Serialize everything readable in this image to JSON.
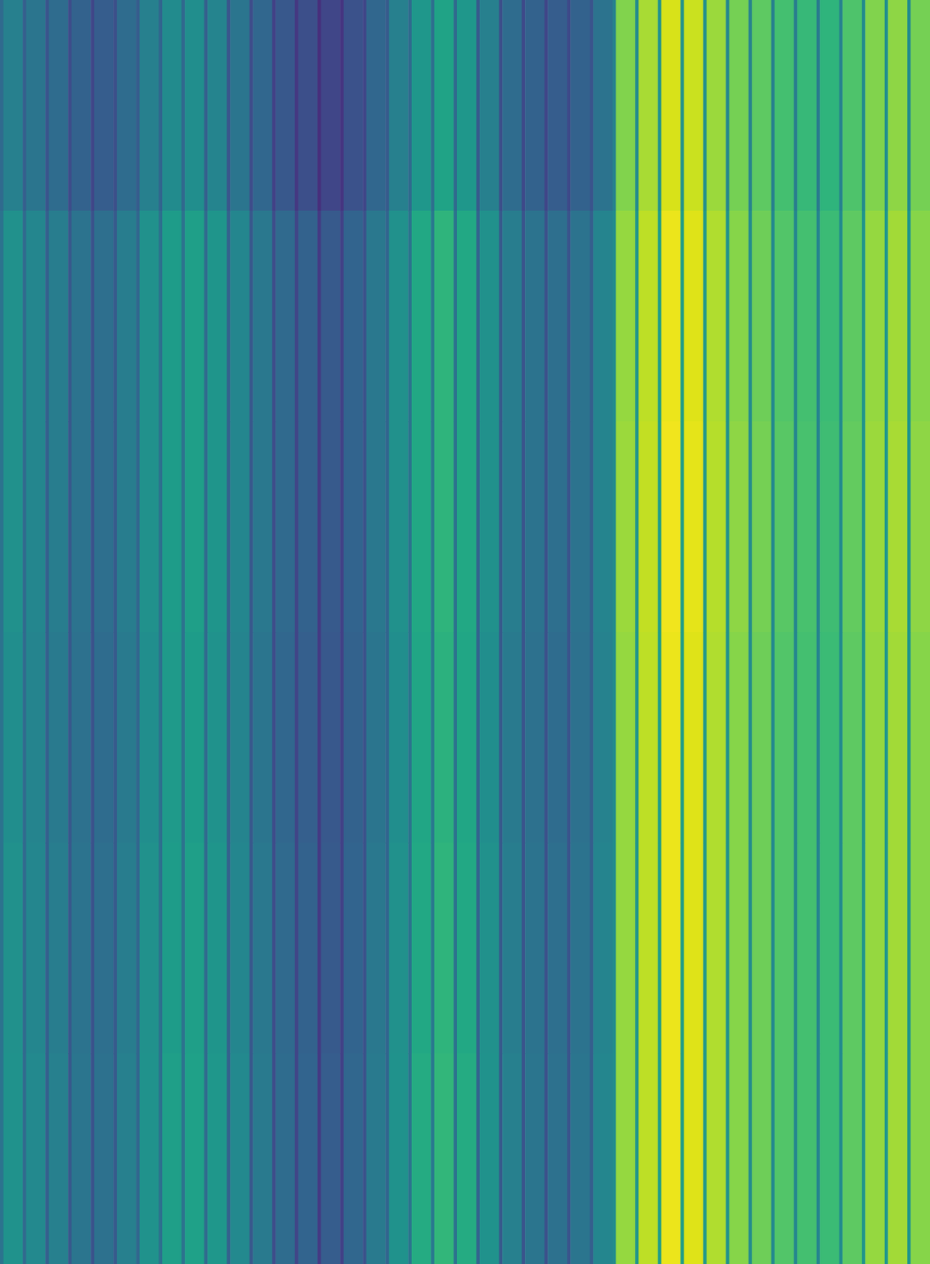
{
  "chart_data": {
    "type": "heatmap",
    "color": "viridis",
    "tick_labels": false,
    "xlim": [
      0,
      41
    ],
    "ylim": [
      0,
      6
    ],
    "zlim": [
      0,
      1
    ],
    "x": [
      0,
      0.15,
      1,
      1.15,
      2,
      2.15,
      3,
      3.15,
      4,
      4.15,
      5,
      5.15,
      6,
      6.15,
      7,
      7.15,
      8,
      8.15,
      9,
      9.15,
      10,
      10.15,
      11,
      11.15,
      12,
      12.15,
      13,
      13.15,
      14,
      14.15,
      15,
      15.15,
      16,
      16.15,
      17,
      17.15,
      18,
      18.15,
      19,
      19.15,
      20,
      20.15,
      21,
      21.15,
      22,
      22.15,
      23,
      23.15,
      24,
      24.15,
      25,
      25.15,
      26,
      26.15,
      27,
      27.15,
      28,
      28.15,
      29,
      29.15,
      30,
      30.15,
      31,
      31.15,
      32,
      32.15,
      33,
      33.15,
      34,
      34.15,
      35,
      35.15,
      36,
      36.15,
      37,
      37.15,
      38,
      38.15,
      39,
      39.15,
      40,
      40.15,
      41
    ],
    "y": [
      0,
      1,
      2,
      3,
      4,
      5,
      6
    ],
    "z": [
      [
        0.34,
        0.43,
        0.3,
        0.39,
        0.26,
        0.35,
        0.23,
        0.31,
        0.21,
        0.29,
        0.24,
        0.35,
        0.29,
        0.43,
        0.32,
        0.48,
        0.33,
        0.49,
        0.3,
        0.45,
        0.26,
        0.39,
        0.23,
        0.33,
        0.19,
        0.27,
        0.16,
        0.24,
        0.13,
        0.21,
        0.15,
        0.25,
        0.21,
        0.33,
        0.28,
        0.43,
        0.34,
        0.53,
        0.36,
        0.58,
        0.34,
        0.53,
        0.28,
        0.43,
        0.24,
        0.35,
        0.22,
        0.31,
        0.21,
        0.29,
        0.22,
        0.31,
        0.26,
        0.38,
        0.44,
        0.81,
        0.48,
        0.87,
        0.51,
        0.94,
        0.51,
        0.92,
        0.49,
        0.85,
        0.46,
        0.79,
        0.44,
        0.75,
        0.43,
        0.7,
        0.42,
        0.67,
        0.41,
        0.65,
        0.44,
        0.72,
        0.48,
        0.81,
        0.49,
        0.83,
        0.48,
        0.79
      ],
      [
        0.38,
        0.5,
        0.34,
        0.46,
        0.3,
        0.42,
        0.27,
        0.38,
        0.25,
        0.36,
        0.28,
        0.42,
        0.33,
        0.5,
        0.36,
        0.55,
        0.37,
        0.56,
        0.34,
        0.52,
        0.3,
        0.46,
        0.27,
        0.4,
        0.23,
        0.34,
        0.2,
        0.31,
        0.17,
        0.28,
        0.19,
        0.32,
        0.25,
        0.4,
        0.32,
        0.5,
        0.38,
        0.6,
        0.4,
        0.65,
        0.38,
        0.6,
        0.32,
        0.5,
        0.28,
        0.42,
        0.26,
        0.38,
        0.25,
        0.36,
        0.26,
        0.38,
        0.3,
        0.45,
        0.48,
        0.84,
        0.52,
        0.9,
        0.55,
        0.97,
        0.55,
        0.95,
        0.53,
        0.88,
        0.5,
        0.82,
        0.48,
        0.78,
        0.47,
        0.73,
        0.46,
        0.7,
        0.45,
        0.68,
        0.48,
        0.75,
        0.52,
        0.84,
        0.53,
        0.86,
        0.52,
        0.82
      ],
      [
        0.38,
        0.5,
        0.34,
        0.46,
        0.3,
        0.42,
        0.27,
        0.38,
        0.25,
        0.36,
        0.28,
        0.42,
        0.33,
        0.5,
        0.36,
        0.55,
        0.37,
        0.56,
        0.34,
        0.52,
        0.3,
        0.46,
        0.27,
        0.4,
        0.23,
        0.34,
        0.2,
        0.31,
        0.17,
        0.28,
        0.19,
        0.32,
        0.25,
        0.4,
        0.32,
        0.5,
        0.38,
        0.6,
        0.4,
        0.65,
        0.38,
        0.6,
        0.32,
        0.5,
        0.28,
        0.42,
        0.26,
        0.38,
        0.25,
        0.36,
        0.26,
        0.38,
        0.3,
        0.45,
        0.48,
        0.85,
        0.52,
        0.91,
        0.55,
        0.98,
        0.55,
        0.96,
        0.53,
        0.89,
        0.5,
        0.83,
        0.48,
        0.79,
        0.47,
        0.74,
        0.46,
        0.71,
        0.45,
        0.69,
        0.48,
        0.76,
        0.52,
        0.85,
        0.53,
        0.87,
        0.52,
        0.83
      ],
      [
        0.38,
        0.49,
        0.34,
        0.45,
        0.3,
        0.41,
        0.27,
        0.37,
        0.25,
        0.35,
        0.28,
        0.41,
        0.33,
        0.49,
        0.36,
        0.54,
        0.37,
        0.55,
        0.34,
        0.51,
        0.3,
        0.45,
        0.27,
        0.39,
        0.23,
        0.33,
        0.2,
        0.3,
        0.17,
        0.27,
        0.19,
        0.31,
        0.25,
        0.39,
        0.32,
        0.49,
        0.38,
        0.59,
        0.4,
        0.64,
        0.38,
        0.59,
        0.32,
        0.49,
        0.28,
        0.41,
        0.26,
        0.37,
        0.25,
        0.35,
        0.26,
        0.37,
        0.3,
        0.44,
        0.48,
        0.84,
        0.52,
        0.9,
        0.55,
        0.97,
        0.55,
        0.95,
        0.53,
        0.88,
        0.5,
        0.82,
        0.48,
        0.78,
        0.47,
        0.73,
        0.46,
        0.7,
        0.45,
        0.68,
        0.48,
        0.75,
        0.52,
        0.84,
        0.53,
        0.86,
        0.52,
        0.82
      ],
      [
        0.38,
        0.5,
        0.34,
        0.46,
        0.3,
        0.42,
        0.27,
        0.38,
        0.25,
        0.36,
        0.28,
        0.42,
        0.33,
        0.5,
        0.36,
        0.55,
        0.37,
        0.56,
        0.34,
        0.52,
        0.3,
        0.46,
        0.27,
        0.4,
        0.23,
        0.34,
        0.2,
        0.31,
        0.17,
        0.28,
        0.19,
        0.32,
        0.25,
        0.4,
        0.32,
        0.5,
        0.38,
        0.6,
        0.4,
        0.65,
        0.38,
        0.6,
        0.32,
        0.5,
        0.28,
        0.42,
        0.26,
        0.38,
        0.25,
        0.36,
        0.26,
        0.38,
        0.3,
        0.45,
        0.48,
        0.84,
        0.52,
        0.9,
        0.55,
        0.97,
        0.55,
        0.95,
        0.53,
        0.88,
        0.5,
        0.82,
        0.48,
        0.78,
        0.47,
        0.73,
        0.46,
        0.7,
        0.45,
        0.68,
        0.48,
        0.75,
        0.52,
        0.84,
        0.53,
        0.86,
        0.52,
        0.82
      ],
      [
        0.38,
        0.51,
        0.34,
        0.47,
        0.3,
        0.43,
        0.27,
        0.39,
        0.25,
        0.37,
        0.28,
        0.43,
        0.33,
        0.51,
        0.36,
        0.56,
        0.37,
        0.57,
        0.34,
        0.53,
        0.3,
        0.47,
        0.27,
        0.41,
        0.23,
        0.35,
        0.2,
        0.32,
        0.17,
        0.29,
        0.19,
        0.33,
        0.25,
        0.41,
        0.32,
        0.51,
        0.38,
        0.61,
        0.4,
        0.66,
        0.38,
        0.61,
        0.32,
        0.51,
        0.28,
        0.43,
        0.26,
        0.39,
        0.25,
        0.37,
        0.26,
        0.39,
        0.3,
        0.46,
        0.48,
        0.84,
        0.52,
        0.9,
        0.55,
        0.97,
        0.55,
        0.95,
        0.53,
        0.88,
        0.5,
        0.82,
        0.48,
        0.78,
        0.47,
        0.73,
        0.46,
        0.7,
        0.45,
        0.68,
        0.48,
        0.75,
        0.52,
        0.84,
        0.53,
        0.86,
        0.52,
        0.82
      ]
    ]
  }
}
